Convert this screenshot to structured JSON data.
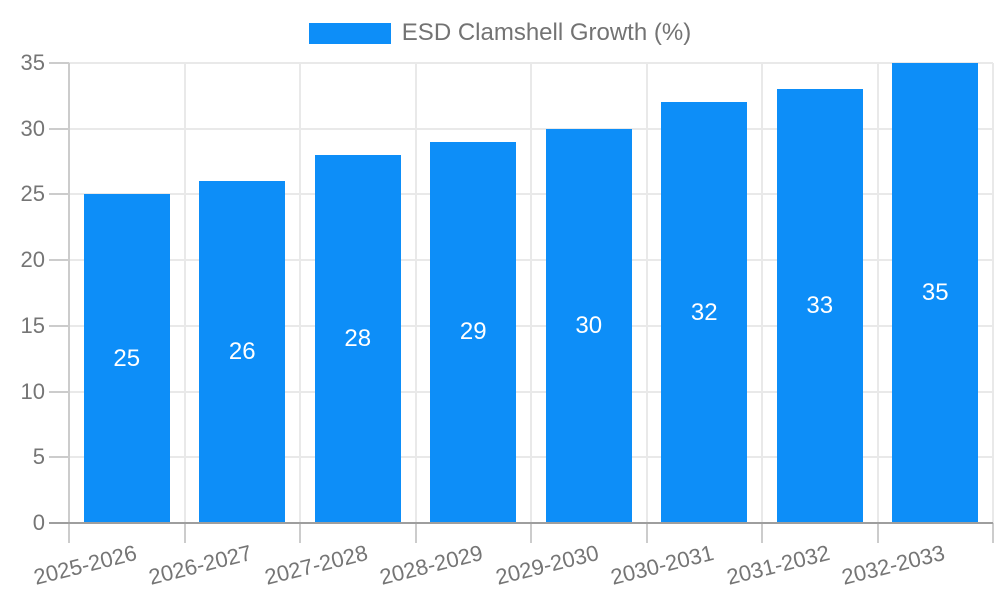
{
  "chart_data": {
    "type": "bar",
    "title": "",
    "legend_entries": [
      "ESD Clamshell Growth (%)"
    ],
    "legend_position": "top-center",
    "categories": [
      "2025-2026",
      "2026-2027",
      "2027-2028",
      "2028-2029",
      "2029-2030",
      "2030-2031",
      "2031-2032",
      "2032-2033"
    ],
    "values": [
      25,
      26,
      28,
      29,
      30,
      32,
      33,
      35
    ],
    "xlabel": "",
    "ylabel": "",
    "ylim": [
      0,
      35
    ],
    "yticks": [
      0,
      5,
      10,
      15,
      20,
      25,
      30,
      35
    ],
    "grid": true,
    "x_tick_rotation_deg": -14,
    "bar_width_ratio": 0.745,
    "colors": {
      "bar": "#0d8ef8",
      "bar_label_text": "#ffffff",
      "axis_text": "#757575",
      "legend_text": "#737373",
      "grid_line": "#e9e9e9",
      "axis_line": "#cccccc",
      "tick_line": "#cccccc",
      "baseline": "#9e9e9e",
      "background": "#ffffff"
    }
  }
}
